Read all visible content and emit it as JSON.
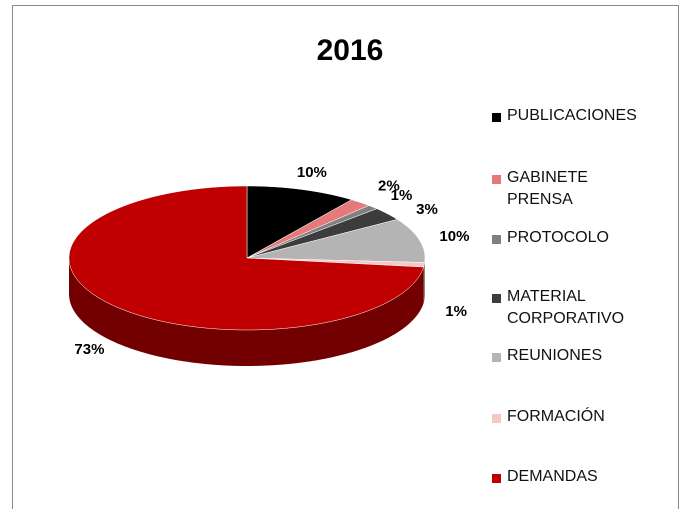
{
  "chart_data": {
    "type": "pie",
    "title": "2016",
    "categories": [
      "PUBLICACIONES",
      "GABINETE PRENSA",
      "PROTOCOLO",
      "MATERIAL CORPORATIVO",
      "REUNIONES",
      "FORMACIÓN",
      "DEMANDAS"
    ],
    "values": [
      10,
      2,
      1,
      3,
      10,
      1,
      73
    ],
    "value_labels": [
      "10%",
      "2%",
      "1%",
      "3%",
      "10%",
      "1%",
      "73%"
    ],
    "colors": [
      "#000000",
      "#e67a7a",
      "#808080",
      "#3c3c3c",
      "#b4b4b4",
      "#f5c8c8",
      "#c00000"
    ],
    "legend": "right"
  }
}
